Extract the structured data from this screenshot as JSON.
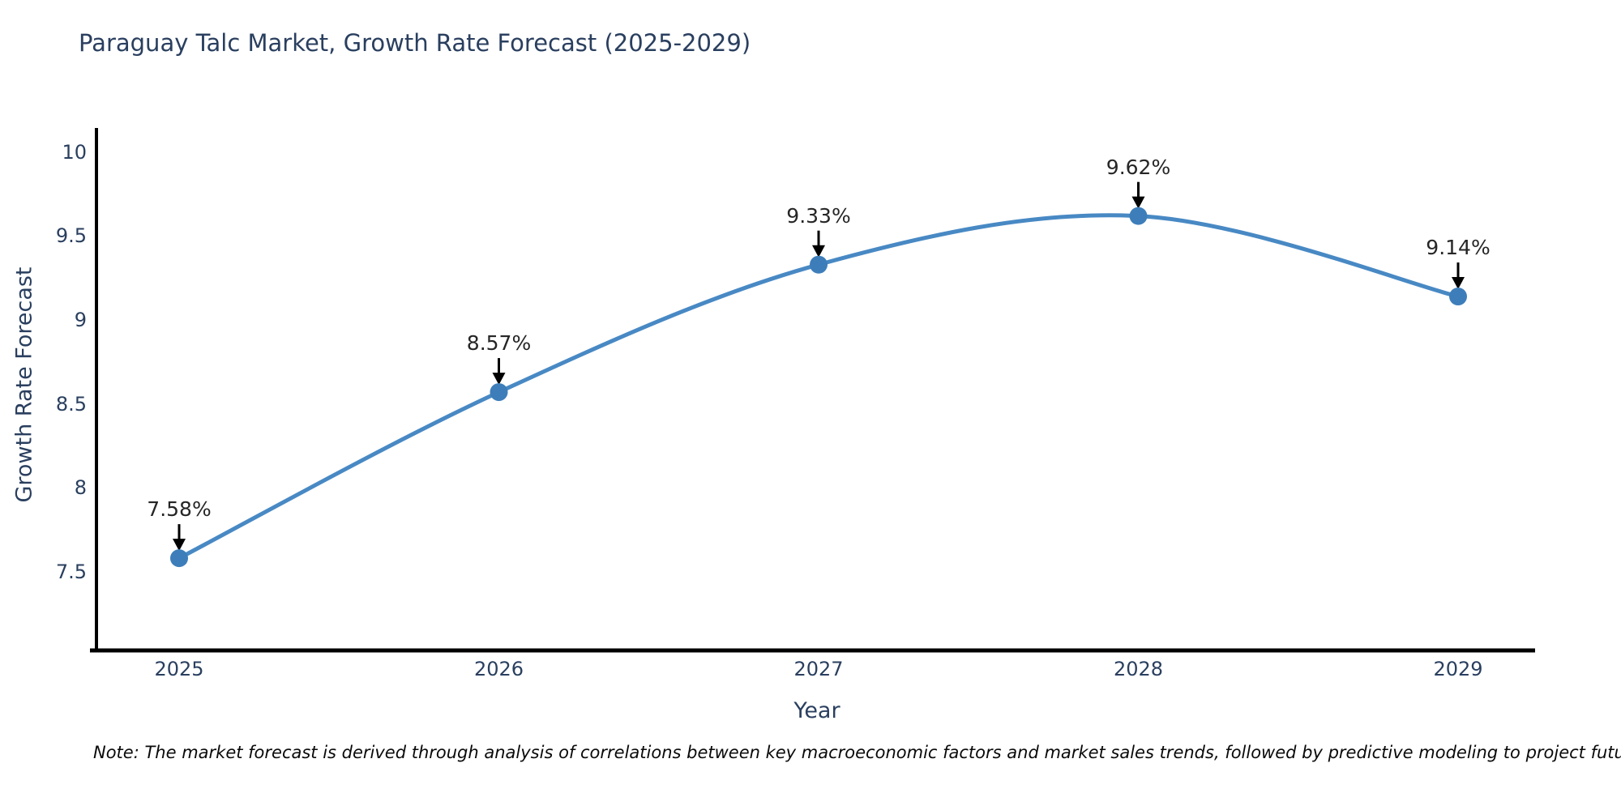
{
  "title": "Paraguay Talc Market, Growth Rate Forecast (2025-2029)",
  "note": "Note: The market forecast is derived through analysis of correlations between key macroeconomic factors and market sales trends, followed by predictive modeling to project future sales",
  "colors": {
    "line": "#4889c4",
    "marker": "#3d7eba",
    "axis": "#000000",
    "text": "#2a3f5f",
    "annotation": "#262626",
    "arrow": "#000000",
    "background": "#ffffff"
  },
  "chart_data": {
    "type": "line",
    "title": "Paraguay Talc Market, Growth Rate Forecast (2025-2029)",
    "xlabel": "Year",
    "ylabel": "Growth Rate Forecast",
    "categories": [
      "2025",
      "2026",
      "2027",
      "2028",
      "2029"
    ],
    "values": [
      7.58,
      8.57,
      9.33,
      9.62,
      9.14
    ],
    "point_labels": [
      "7.58%",
      "8.57%",
      "9.33%",
      "9.62%",
      "9.14%"
    ],
    "y_ticks": [
      7.5,
      8,
      8.5,
      9,
      9.5,
      10
    ],
    "ylim": [
      7.03,
      10.135
    ],
    "line_shape": "spline",
    "grid": false,
    "legend": false,
    "markers": true,
    "annotation_arrows": true
  }
}
